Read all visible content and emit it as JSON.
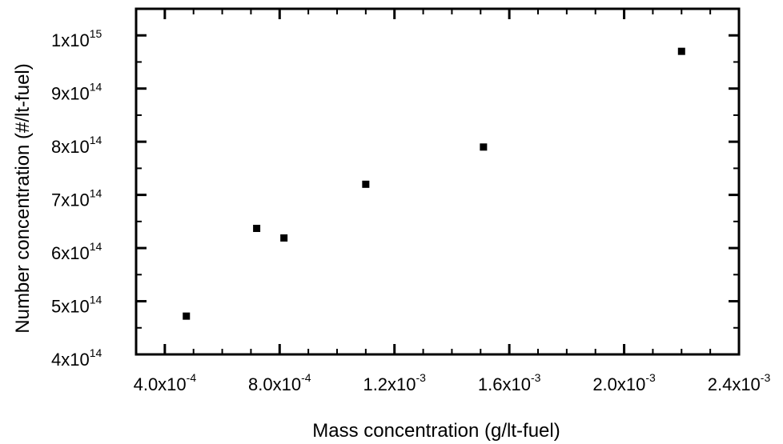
{
  "chart_data": {
    "type": "scatter",
    "title": "",
    "xlabel": "Mass concentration (g/lt-fuel)",
    "ylabel": "Number concentration (#/lt-fuel)",
    "xlim": [
      0.0003,
      0.0024
    ],
    "ylim": [
      400000000000000.0,
      1050000000000000.0
    ],
    "grid": false,
    "legend": "none",
    "marker": "square",
    "color": "#000000",
    "x_ticks": [
      {
        "value": 0.0004,
        "mantissa": "4.0x10",
        "exp": "-4"
      },
      {
        "value": 0.0008,
        "mantissa": "8.0x10",
        "exp": "-4"
      },
      {
        "value": 0.0012,
        "mantissa": "1.2x10",
        "exp": "-3"
      },
      {
        "value": 0.0016,
        "mantissa": "1.6x10",
        "exp": "-3"
      },
      {
        "value": 0.002,
        "mantissa": "2.0x10",
        "exp": "-3"
      },
      {
        "value": 0.0024,
        "mantissa": "2.4x10",
        "exp": "-3"
      }
    ],
    "y_ticks": [
      {
        "value": 400000000000000.0,
        "mantissa": "4x10",
        "exp": "14"
      },
      {
        "value": 500000000000000.0,
        "mantissa": "5x10",
        "exp": "14"
      },
      {
        "value": 600000000000000.0,
        "mantissa": "6x10",
        "exp": "14"
      },
      {
        "value": 700000000000000.0,
        "mantissa": "7x10",
        "exp": "14"
      },
      {
        "value": 800000000000000.0,
        "mantissa": "8x10",
        "exp": "14"
      },
      {
        "value": 900000000000000.0,
        "mantissa": "9x10",
        "exp": "14"
      },
      {
        "value": 1000000000000000.0,
        "mantissa": "1x10",
        "exp": "15"
      }
    ],
    "x_minor_ticks": [
      0.0003,
      0.0005,
      0.0006,
      0.0007,
      0.0009,
      0.001,
      0.0011,
      0.0013,
      0.0014,
      0.0015,
      0.0017,
      0.0018,
      0.0019,
      0.0021,
      0.0022,
      0.0023
    ],
    "y_minor_ticks": [
      450000000000000.0,
      550000000000000.0,
      650000000000000.0,
      750000000000000.0,
      850000000000000.0,
      950000000000000.0,
      1050000000000000.0
    ],
    "points": [
      {
        "x": 0.000475,
        "y": 472000000000000.0
      },
      {
        "x": 0.00072,
        "y": 637000000000000.0
      },
      {
        "x": 0.000815,
        "y": 619000000000000.0
      },
      {
        "x": 0.0011,
        "y": 720000000000000.0
      },
      {
        "x": 0.00151,
        "y": 790000000000000.0
      },
      {
        "x": 0.0022,
        "y": 970000000000000.0
      }
    ]
  }
}
